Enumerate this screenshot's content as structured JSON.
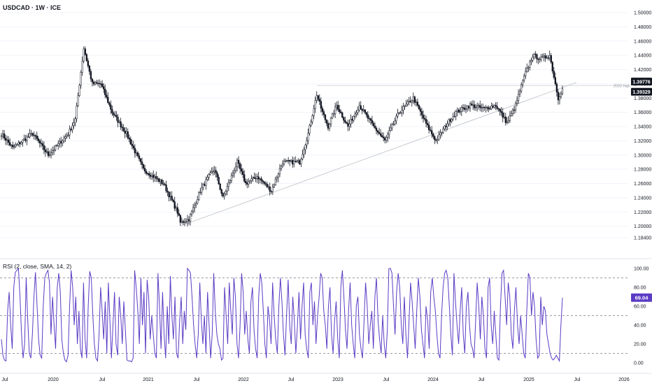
{
  "header": {
    "symbol_line": "USDCAD · 1W · ICE"
  },
  "rsi_header": {
    "text": "RSI (2, close, SMA, 14, 2)"
  },
  "colors": {
    "candle": "#131722",
    "rsi_line": "#5b3cc4",
    "rsi_badge": "#5b3cc4",
    "trendline": "#c8cbd1",
    "grid": "#f0f3fa",
    "axis_text": "#131722"
  },
  "chart_data": [
    {
      "type": "candlestick",
      "title": "USDCAD · 1W · ICE",
      "x_tick_labels": [
        "Jul",
        "2020",
        "Jul",
        "2021",
        "Jul",
        "2022",
        "Jul",
        "2023",
        "Jul",
        "2024",
        "Jul",
        "2025",
        "Jul",
        "2026"
      ],
      "y_tick_labels": [
        "1.50000",
        "1.48000",
        "1.46000",
        "1.44000",
        "1.42000",
        "1.40000",
        "1.38000",
        "1.36000",
        "1.34000",
        "1.32000",
        "1.30000",
        "1.28000",
        "1.26000",
        "1.24000",
        "1.22000",
        "1.20000",
        "1.18400"
      ],
      "ylim": [
        1.184,
        1.5
      ],
      "price_labels": [
        {
          "value": 1.39776,
          "text": "1.39776"
        },
        {
          "value": 1.39329,
          "text": "1.39329"
        }
      ],
      "annotations": [
        {
          "text": "2022 high",
          "value": 1.3977
        }
      ],
      "trendline": {
        "from": {
          "week": 126,
          "price": 1.2005
        },
        "to": {
          "week": 395,
          "price": 1.399
        }
      },
      "close_anchors": [
        [
          0,
          1.33
        ],
        [
          8,
          1.31
        ],
        [
          22,
          1.33
        ],
        [
          33,
          1.3
        ],
        [
          40,
          1.315
        ],
        [
          47,
          1.33
        ],
        [
          52,
          1.35
        ],
        [
          58,
          1.45
        ],
        [
          64,
          1.4
        ],
        [
          70,
          1.4
        ],
        [
          78,
          1.36
        ],
        [
          88,
          1.33
        ],
        [
          100,
          1.28
        ],
        [
          114,
          1.26
        ],
        [
          124,
          1.22
        ],
        [
          126,
          1.205
        ],
        [
          132,
          1.21
        ],
        [
          140,
          1.25
        ],
        [
          146,
          1.27
        ],
        [
          150,
          1.28
        ],
        [
          156,
          1.24
        ],
        [
          166,
          1.29
        ],
        [
          172,
          1.26
        ],
        [
          180,
          1.27
        ],
        [
          190,
          1.25
        ],
        [
          198,
          1.29
        ],
        [
          210,
          1.29
        ],
        [
          216,
          1.33
        ],
        [
          222,
          1.385
        ],
        [
          226,
          1.36
        ],
        [
          230,
          1.34
        ],
        [
          236,
          1.37
        ],
        [
          244,
          1.34
        ],
        [
          252,
          1.37
        ],
        [
          262,
          1.34
        ],
        [
          270,
          1.32
        ],
        [
          280,
          1.36
        ],
        [
          290,
          1.38
        ],
        [
          300,
          1.34
        ],
        [
          306,
          1.32
        ],
        [
          314,
          1.345
        ],
        [
          320,
          1.36
        ],
        [
          330,
          1.37
        ],
        [
          340,
          1.365
        ],
        [
          348,
          1.37
        ],
        [
          356,
          1.345
        ],
        [
          362,
          1.37
        ],
        [
          368,
          1.41
        ],
        [
          374,
          1.44
        ],
        [
          380,
          1.435
        ],
        [
          386,
          1.44
        ],
        [
          392,
          1.38
        ],
        [
          395,
          1.393
        ]
      ],
      "weeks_total": 396
    },
    {
      "type": "line",
      "title": "RSI (2, close, SMA, 14, 2)",
      "y_tick_labels": [
        "100.00",
        "80.00",
        "60.00",
        "40.00",
        "20.00",
        "0.00"
      ],
      "ylim": [
        0,
        100
      ],
      "dashed_levels": [
        90,
        50,
        10
      ],
      "last_value": "69.04",
      "values": [
        25,
        8,
        3,
        2,
        55,
        75,
        40,
        15,
        80,
        96,
        98,
        100,
        70,
        30,
        5,
        20,
        90,
        45,
        10,
        5,
        30,
        70,
        96,
        60,
        25,
        8,
        5,
        60,
        90,
        95,
        98,
        85,
        30,
        70,
        40,
        15,
        80,
        95,
        75,
        25,
        10,
        3,
        1,
        8,
        60,
        98,
        80,
        40,
        70,
        20,
        55,
        15,
        5,
        85,
        25,
        5,
        60,
        97,
        90,
        50,
        20,
        5,
        2,
        30,
        80,
        55,
        25,
        65,
        10,
        85,
        45,
        5,
        40,
        75,
        20,
        8,
        70,
        50,
        20,
        65,
        35,
        3,
        2,
        2,
        1,
        5,
        98,
        80,
        55,
        20,
        90,
        40,
        75,
        10,
        88,
        70,
        25,
        50,
        30,
        10,
        5,
        95,
        60,
        15,
        75,
        30,
        5,
        60,
        20,
        92,
        50,
        25,
        70,
        10,
        5,
        45,
        70,
        20,
        55,
        35,
        100,
        98,
        95,
        70,
        40,
        20,
        5,
        30,
        85,
        45,
        20,
        50,
        10,
        75,
        40,
        5,
        30,
        95,
        55,
        30,
        20,
        15,
        3,
        5,
        80,
        50,
        20,
        85,
        55,
        30,
        90,
        70,
        20,
        5,
        40,
        95,
        75,
        30,
        55,
        25,
        10,
        65,
        80,
        35,
        15,
        5,
        70,
        95,
        85,
        55,
        20,
        5,
        60,
        45,
        20,
        85,
        50,
        25,
        10,
        60,
        90,
        65,
        30,
        8,
        50,
        88,
        40,
        20,
        70,
        45,
        10,
        40,
        75,
        25,
        60,
        85,
        30,
        15,
        5,
        75,
        85,
        40,
        65,
        20,
        50,
        70,
        95,
        90,
        55,
        40,
        15,
        60,
        80,
        30,
        10,
        45,
        65,
        25,
        5,
        80,
        98,
        70,
        35,
        15,
        55,
        85,
        40,
        20,
        5,
        60,
        70,
        30,
        15,
        5,
        45,
        85,
        60,
        20,
        40,
        55,
        15,
        70,
        90,
        45,
        25,
        10,
        50,
        20,
        5,
        35,
        100,
        100,
        95,
        60,
        30,
        75,
        95,
        80,
        40,
        20,
        70,
        30,
        5,
        45,
        85,
        65,
        40,
        15,
        55,
        90,
        70,
        35,
        20,
        5,
        60,
        45,
        15,
        75,
        90,
        70,
        55,
        30,
        10,
        5,
        50,
        80,
        95,
        98,
        90,
        60,
        30,
        8,
        95,
        65,
        40,
        20,
        55,
        80,
        30,
        10,
        60,
        75,
        40,
        20,
        15,
        5,
        45,
        85,
        60,
        25,
        70,
        50,
        15,
        5,
        80,
        90,
        40,
        20,
        55,
        30,
        5,
        3,
        60,
        95,
        98,
        70,
        40,
        85,
        70,
        30,
        15,
        55,
        80,
        40,
        20,
        50,
        30,
        10,
        5,
        55,
        95,
        90,
        50,
        75,
        60,
        25,
        5,
        8,
        70,
        40,
        60,
        55,
        30,
        20,
        10,
        5,
        3,
        5,
        8,
        5,
        2,
        40,
        69
      ]
    }
  ]
}
